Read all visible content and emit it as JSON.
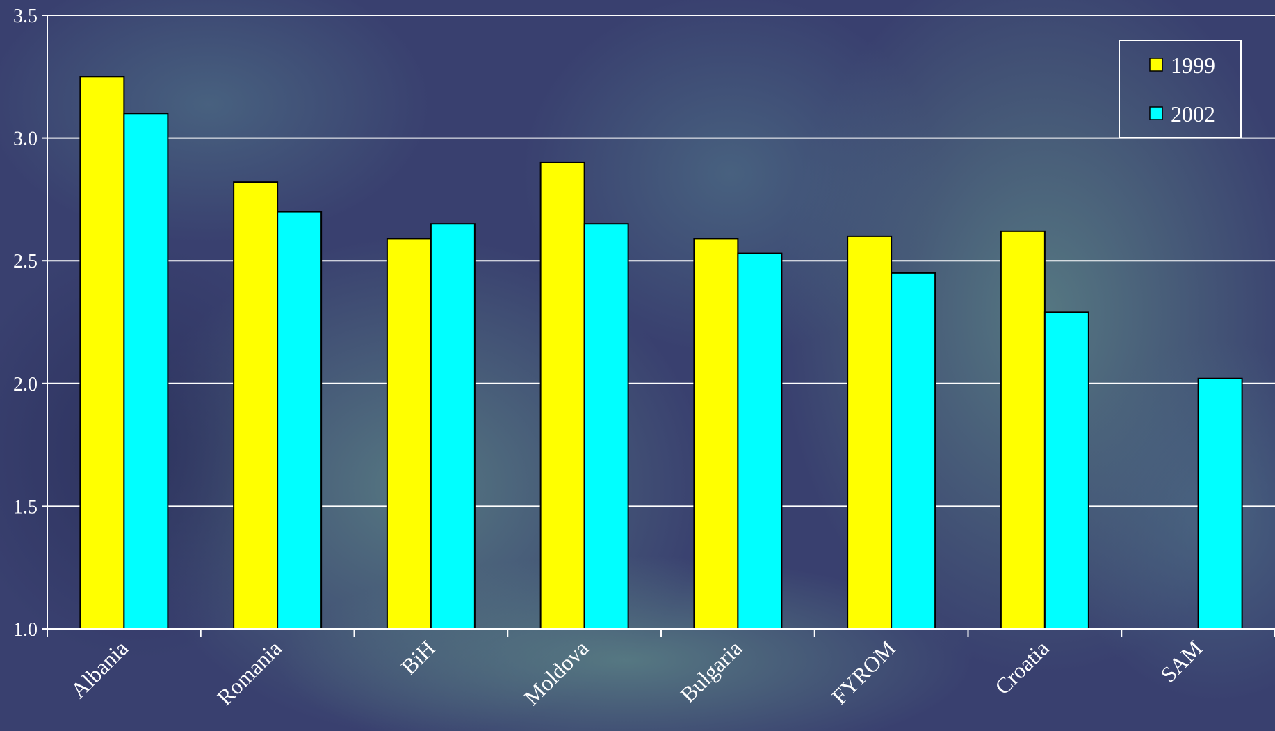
{
  "colors": {
    "background": "#39406f",
    "grid": "#ffffff",
    "series_1999": "#ffff00",
    "series_2002": "#00ffff",
    "bar_stroke": "#000000",
    "text": "#ffffff"
  },
  "chart_data": {
    "type": "bar",
    "title": "",
    "xlabel": "",
    "ylabel": "",
    "ylim": [
      1.0,
      3.5
    ],
    "yticks": [
      "1.0",
      "1.5",
      "2.0",
      "2.5",
      "3.0",
      "3.5"
    ],
    "categories": [
      "Albania",
      "Romania",
      "BiH",
      "Moldova",
      "Bulgaria",
      "FYROM",
      "Croatia",
      "SAM"
    ],
    "series": [
      {
        "name": "1999",
        "values": [
          3.25,
          2.82,
          2.59,
          2.9,
          2.59,
          2.6,
          2.62,
          null
        ]
      },
      {
        "name": "2002",
        "values": [
          3.1,
          2.7,
          2.65,
          2.65,
          2.53,
          2.45,
          2.29,
          2.02
        ]
      }
    ],
    "grid": true,
    "legend": "top-right"
  }
}
